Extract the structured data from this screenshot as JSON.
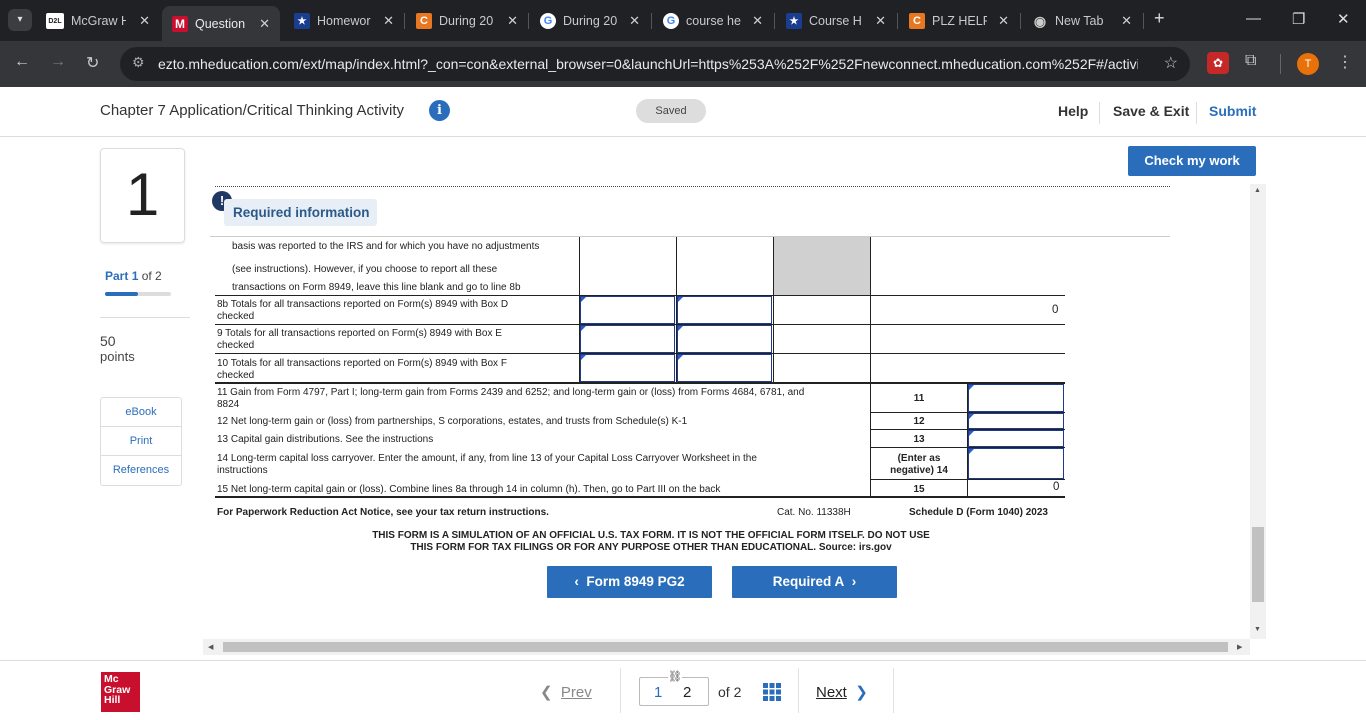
{
  "browser": {
    "tabs": [
      {
        "icon": "d2l-icon",
        "icon_text": "D2L",
        "label": "McGraw H"
      },
      {
        "icon": "mcgraw-m-icon",
        "icon_text": "M",
        "label": "Question"
      },
      {
        "icon": "star-bookmark-icon",
        "icon_text": "★",
        "label": "Homewor"
      },
      {
        "icon": "chegg-icon",
        "icon_text": "C",
        "label": "During 20"
      },
      {
        "icon": "google-icon",
        "icon_text": "G",
        "label": "During 20"
      },
      {
        "icon": "google-icon",
        "icon_text": "G",
        "label": "course he"
      },
      {
        "icon": "star-bookmark-icon",
        "icon_text": "★",
        "label": "Course H"
      },
      {
        "icon": "chegg-icon",
        "icon_text": "C",
        "label": "PLZ HELP"
      },
      {
        "icon": "chrome-icon",
        "icon_text": "◉",
        "label": "New Tab"
      }
    ],
    "url": "ezto.mheducation.com/ext/map/index.html?_con=con&external_browser=0&launchUrl=https%253A%252F%252Fnewconnect.mheducation.com%252F#/activi...",
    "profile_initial": "T"
  },
  "header": {
    "title": "Chapter 7 Application/Critical Thinking Activity",
    "info_icon": "i",
    "saved": "Saved",
    "help": "Help",
    "save_exit": "Save & Exit",
    "submit": "Submit"
  },
  "rail": {
    "question_number": "1",
    "part_label": "Part",
    "part_current": "1",
    "part_of": "of 2",
    "part_progress": 0.5,
    "points_value": "50",
    "points_label": "points",
    "tools": [
      "eBook",
      "Print",
      "References"
    ]
  },
  "main": {
    "check_button": "Check my work",
    "required_info": "Required information",
    "required_icon": "!",
    "form": {
      "line8a": [
        "basis was reported to the IRS and for which you have no adjustments",
        "(see instructions).  However, if you choose to report all these",
        "transactions on Form 8949, leave this line blank and go to line 8b"
      ],
      "line8b": [
        "8b Totals for all transactions reported on Form(s) 8949 with Box D",
        "checked"
      ],
      "line8b_value": "0",
      "line9": [
        "9  Totals for all transactions reported on Form(s) 8949 with Box E",
        "checked"
      ],
      "line10": [
        "10 Totals for all transactions reported on Form(s) 8949 with Box F",
        "checked"
      ],
      "line11": [
        "11 Gain from Form 4797, Part I; long-term gain from Forms 2439 and 6252; and long-term gain or (loss) from Forms 4684, 6781, and",
        "8824"
      ],
      "line11_num": "11",
      "line12": "12 Net long-term gain or (loss) from partnerships, S corporations, estates, and trusts from Schedule(s) K-1",
      "line12_num": "12",
      "line13": "13 Capital gain distributions.  See the instructions",
      "line13_num": "13",
      "line14": [
        "14 Long-term capital loss carryover.  Enter the amount, if any, from line 13 of your Capital Loss Carryover Worksheet in the",
        "instructions"
      ],
      "line14_num": [
        "(Enter as",
        "negative) 14"
      ],
      "line15": "15 Net long-term capital gain or (loss).  Combine lines 8a through 14 in column (h).  Then, go to Part III on the back",
      "line15_num": "15",
      "line15_value": "0",
      "footer_left": "For Paperwork Reduction Act Notice, see your tax return instructions.",
      "footer_cat": "Cat. No. 11338H",
      "footer_right": "Schedule D (Form 1040) 2023",
      "disclaimer": [
        "THIS FORM IS A SIMULATION OF AN OFFICIAL U.S. TAX FORM. IT IS NOT THE OFFICIAL FORM ITSELF. DO NOT USE",
        "THIS FORM FOR TAX FILINGS OR FOR ANY PURPOSE OTHER THAN EDUCATIONAL. Source: irs.gov"
      ]
    },
    "prev_tab_button": "Form 8949 PG2",
    "next_tab_button": "Required A"
  },
  "footer": {
    "prev": "Prev",
    "page_current": "1",
    "page_other": "2",
    "of_label": "of 2",
    "next": "Next",
    "logo_lines": [
      "Mc",
      "Graw",
      "Hill"
    ]
  },
  "colors": {
    "accent": "#2a6ebb",
    "input_border": "#1f3a8a",
    "logo": "#c8102e",
    "shaded_cell": "#d0d0d0"
  }
}
